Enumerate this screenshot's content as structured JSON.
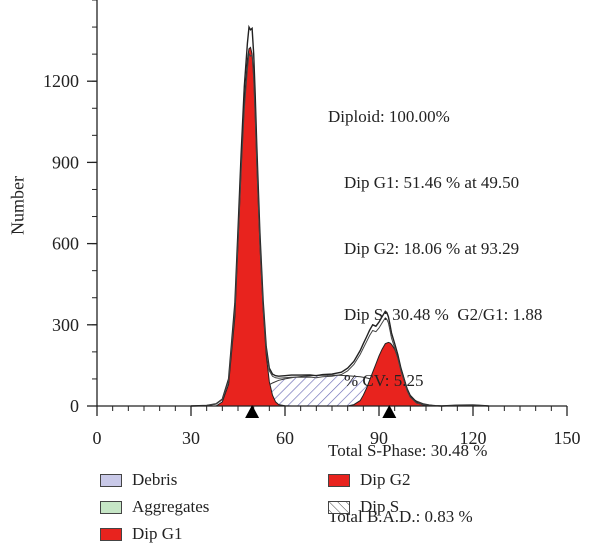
{
  "chart_data": {
    "type": "area",
    "ylabel": "Number",
    "xlabel": "",
    "xlim": [
      0,
      150
    ],
    "ylim": [
      0,
      1500
    ],
    "xticks": [
      0,
      30,
      60,
      90,
      120,
      150
    ],
    "yticks": [
      0,
      300,
      600,
      900,
      1200
    ],
    "markers": [
      49.5,
      93.29
    ],
    "raw_histogram": {
      "x": [
        30,
        35,
        38,
        40,
        42,
        44,
        45,
        46,
        47,
        48,
        48.5,
        49,
        49.5,
        50,
        50.5,
        51,
        52,
        53,
        54,
        55,
        56,
        57,
        58,
        60,
        62,
        65,
        68,
        70,
        72,
        75,
        78,
        80,
        82,
        84,
        85,
        86,
        87,
        88,
        89,
        90,
        91,
        92,
        92.5,
        93,
        93.5,
        94,
        95,
        96,
        97,
        98,
        99,
        100,
        102,
        104,
        106,
        108,
        110,
        115,
        120,
        125
      ],
      "y": [
        0,
        2,
        8,
        25,
        100,
        380,
        650,
        930,
        1180,
        1340,
        1400,
        1390,
        1395,
        1300,
        1150,
        960,
        640,
        390,
        220,
        140,
        118,
        112,
        110,
        112,
        114,
        114,
        115,
        112,
        116,
        118,
        125,
        140,
        165,
        205,
        230,
        255,
        280,
        300,
        295,
        310,
        330,
        350,
        345,
        330,
        300,
        270,
        230,
        190,
        140,
        100,
        60,
        35,
        12,
        6,
        3,
        1,
        0,
        3,
        4,
        0
      ]
    },
    "series": [
      {
        "name": "Debris",
        "color": "#c9c9e8",
        "x": [
          30,
          150
        ],
        "y": [
          0,
          0
        ]
      },
      {
        "name": "Aggregates",
        "color": "#c6e6c6",
        "x": [
          30,
          150
        ],
        "y": [
          0,
          0
        ]
      },
      {
        "name": "Dip G1",
        "color": "#e8231e",
        "x": [
          38,
          40,
          42,
          44,
          45,
          46,
          47,
          48,
          48.5,
          49,
          49.5,
          50,
          50.5,
          51,
          52,
          53,
          54,
          55,
          56,
          57,
          58,
          60,
          62
        ],
        "y": [
          0,
          15,
          80,
          330,
          600,
          880,
          1120,
          1280,
          1320,
          1325,
          1300,
          1220,
          1080,
          900,
          600,
          360,
          190,
          90,
          40,
          15,
          5,
          1,
          0
        ]
      },
      {
        "name": "Dip G2",
        "color": "#e8231e",
        "x": [
          80,
          82,
          84,
          85,
          86,
          87,
          88,
          89,
          90,
          91,
          92,
          93,
          93.5,
          94,
          95,
          96,
          97,
          98,
          99,
          100,
          102,
          104,
          106
        ],
        "y": [
          0,
          5,
          20,
          40,
          65,
          95,
          125,
          155,
          185,
          210,
          230,
          235,
          233,
          228,
          210,
          180,
          140,
          100,
          65,
          40,
          15,
          4,
          0
        ]
      },
      {
        "name": "Dip S",
        "x": [
          40,
          42,
          44,
          46,
          48,
          50,
          52,
          54,
          56,
          58,
          60,
          63,
          66,
          70,
          74,
          78,
          81,
          84,
          86,
          88,
          90,
          92,
          94,
          96,
          98,
          100,
          102,
          104,
          106,
          108
        ],
        "y": [
          0,
          3,
          8,
          15,
          25,
          35,
          55,
          72,
          85,
          95,
          100,
          106,
          110,
          113,
          114,
          113,
          111,
          108,
          104,
          98,
          90,
          80,
          68,
          55,
          42,
          30,
          18,
          9,
          4,
          0
        ]
      }
    ],
    "annotations": [
      "Diploid: 100.00%",
      "Dip G1: 51.46 % at 49.50",
      "Dip G2: 18.06 % at 93.29",
      "Dip S: 30.48 %  G2/G1: 1.88",
      "% CV: 5.25",
      "Total S-Phase: 30.48 %",
      "Total B.A.D.: 0.83 %"
    ],
    "legend": [
      {
        "label": "Debris",
        "color": "#c9c9e8"
      },
      {
        "label": "Aggregates",
        "color": "#c6e6c6"
      },
      {
        "label": "Dip G1",
        "color": "#e8231e"
      },
      {
        "label": "Dip G2",
        "color": "#e8231e"
      },
      {
        "label": "Dip S",
        "pattern": "hatch"
      }
    ]
  }
}
